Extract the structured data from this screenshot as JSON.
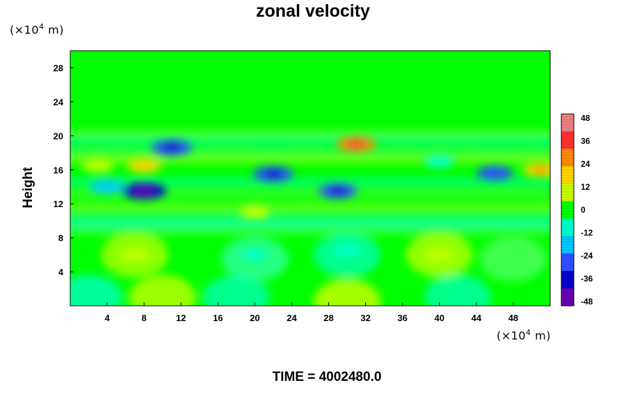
{
  "title": "zonal velocity",
  "y_unit": {
    "prefix": "(×10",
    "exp": "4",
    "suffix": " m)"
  },
  "x_unit": {
    "prefix": "(×10",
    "exp": "4",
    "suffix": " m)"
  },
  "footer": "TIME = 4002480.0",
  "chart_data": {
    "type": "heatmap",
    "title": "zonal velocity",
    "ylabel": "Height",
    "xlim": [
      0,
      52
    ],
    "ylim": [
      0,
      30
    ],
    "x_ticks": [
      4,
      8,
      12,
      16,
      20,
      24,
      28,
      32,
      36,
      40,
      44,
      48
    ],
    "y_ticks": [
      4,
      8,
      12,
      16,
      20,
      24,
      28
    ],
    "colorbar": {
      "min": -48,
      "max": 48,
      "ticks": [
        48,
        36,
        24,
        12,
        0,
        -12,
        -24,
        -36,
        -48
      ],
      "colors": [
        "#f08080",
        "#ff3030",
        "#ff8c00",
        "#ffd700",
        "#c8ff00",
        "#00ff00",
        "#00ffcc",
        "#00c8ff",
        "#3050ff",
        "#0000cd",
        "#6a00b0"
      ]
    },
    "background_value": 0,
    "features": [
      {
        "x": 11,
        "y": 18.6,
        "value": -32
      },
      {
        "x": 8,
        "y": 13.5,
        "value": -40
      },
      {
        "x": 8,
        "y": 16.5,
        "value": 20
      },
      {
        "x": 3,
        "y": 16.5,
        "value": 14
      },
      {
        "x": 22,
        "y": 15.5,
        "value": -32
      },
      {
        "x": 31,
        "y": 19,
        "value": 30
      },
      {
        "x": 29,
        "y": 13.5,
        "value": -28
      },
      {
        "x": 46,
        "y": 15.6,
        "value": -24
      },
      {
        "x": 51,
        "y": 16,
        "value": 24
      },
      {
        "x": 20,
        "y": 11,
        "value": 10
      },
      {
        "x": 7,
        "y": 6,
        "value": 8
      },
      {
        "x": 30,
        "y": 6.5,
        "value": -8
      },
      {
        "x": 40,
        "y": 6,
        "value": 8
      },
      {
        "x": 20,
        "y": 6,
        "value": -6
      },
      {
        "x": 4,
        "y": 14,
        "value": -20
      },
      {
        "x": 40,
        "y": 17,
        "value": -12
      }
    ]
  }
}
